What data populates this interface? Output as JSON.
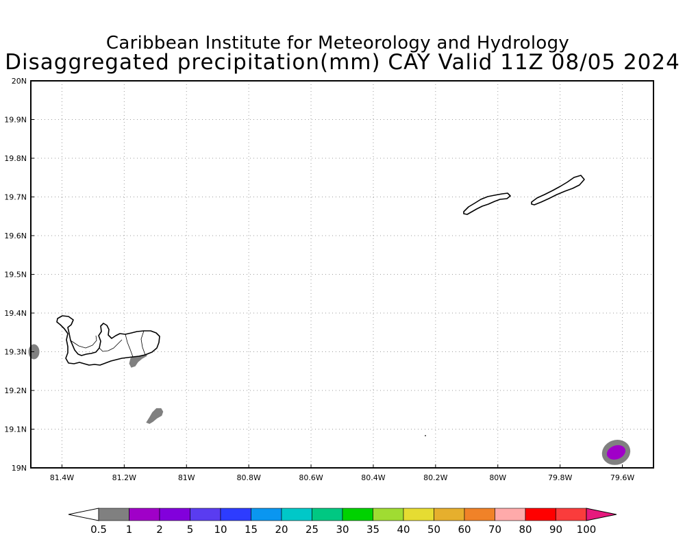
{
  "header": {
    "title": "Caribbean Institute for Meteorology and Hydrology",
    "subtitle": "Disaggregated precipitation(mm) CAY Valid 11Z 08/05 2024"
  },
  "map": {
    "lon_range": [
      -81.5,
      -79.5
    ],
    "lat_range": [
      19.0,
      20.0
    ],
    "gridlines": "dotted",
    "lon_ticks": [
      {
        "value": -81.4,
        "label": "81.4W"
      },
      {
        "value": -81.2,
        "label": "81.2W"
      },
      {
        "value": -81.0,
        "label": "81W"
      },
      {
        "value": -80.8,
        "label": "80.8W"
      },
      {
        "value": -80.6,
        "label": "80.6W"
      },
      {
        "value": -80.4,
        "label": "80.4W"
      },
      {
        "value": -80.2,
        "label": "80.2W"
      },
      {
        "value": -80.0,
        "label": "80W"
      },
      {
        "value": -79.8,
        "label": "79.8W"
      },
      {
        "value": -79.6,
        "label": "79.6W"
      }
    ],
    "lat_ticks": [
      {
        "value": 19.0,
        "label": "19N"
      },
      {
        "value": 19.1,
        "label": "19.1N"
      },
      {
        "value": 19.2,
        "label": "19.2N"
      },
      {
        "value": 19.3,
        "label": "19.3N"
      },
      {
        "value": 19.4,
        "label": "19.4N"
      },
      {
        "value": 19.5,
        "label": "19.5N"
      },
      {
        "value": 19.6,
        "label": "19.6N"
      },
      {
        "value": 19.7,
        "label": "19.7N"
      },
      {
        "value": 19.8,
        "label": "19.8N"
      },
      {
        "value": 19.9,
        "label": "19.9N"
      },
      {
        "value": 20.0,
        "label": "20N"
      }
    ],
    "precip_areas": [
      {
        "lon": -81.49,
        "lat": 19.3,
        "bin": "0.5-1"
      },
      {
        "lon": -81.16,
        "lat": 19.28,
        "bin": "0.5-1"
      },
      {
        "lon": -81.11,
        "lat": 19.14,
        "bin": "0.5-1"
      },
      {
        "lon": -79.62,
        "lat": 19.04,
        "bin": "0.5-1"
      },
      {
        "lon": -79.62,
        "lat": 19.04,
        "bin": "1-2"
      }
    ]
  },
  "colorbar": {
    "labels": [
      "0.5",
      "1",
      "2",
      "5",
      "10",
      "15",
      "20",
      "25",
      "30",
      "35",
      "40",
      "50",
      "60",
      "70",
      "80",
      "90",
      "100"
    ],
    "colors": [
      "#ffffff",
      "#808080",
      "#a000c8",
      "#8200dc",
      "#5a3cf0",
      "#2d3cff",
      "#0a96f0",
      "#00c8c8",
      "#00c882",
      "#00d200",
      "#a0dc32",
      "#e6dc32",
      "#e6af2d",
      "#f08228",
      "#ffaaaa",
      "#ff0000",
      "#fa3c3c",
      "#e6197d"
    ]
  }
}
